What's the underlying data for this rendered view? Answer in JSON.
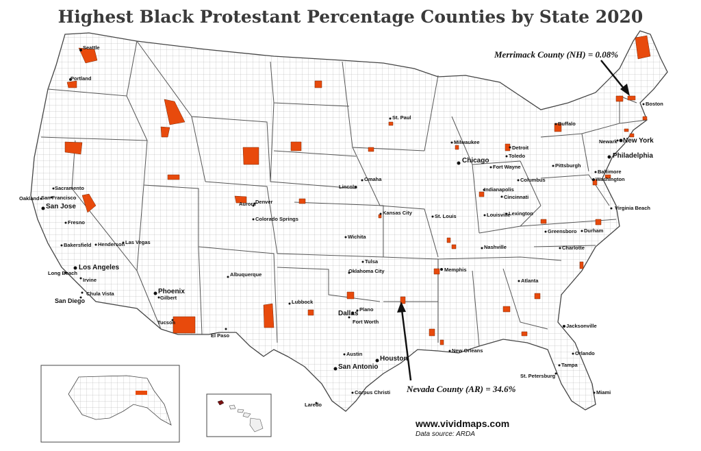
{
  "title": "Highest Black Protestant Percentage Counties by State 2020",
  "colors": {
    "highlight": "#e84a0c",
    "land": "#f0f0f0",
    "border": "#555555",
    "county": "#9a9a9a"
  },
  "annotations": [
    {
      "id": "nh",
      "text": "Merrimack County (NH) = 0.08%"
    },
    {
      "id": "ar",
      "text": "Nevada County (AR) = 34.6%"
    }
  ],
  "footer": {
    "url": "www.vividmaps.com",
    "source": "Data source: ARDA"
  },
  "cities": [
    "Seattle",
    "Portland",
    "Sacramento",
    "Oakland",
    "San Francisco",
    "San Jose",
    "Fresno",
    "Bakersfield",
    "Henderson",
    "Las Vegas",
    "Los Angeles",
    "Long Beach",
    "Irvine",
    "Chula Vista",
    "San Diego",
    "Phoenix",
    "Gilbert",
    "Tucson",
    "El Paso",
    "Albuquerque",
    "Aurora",
    "Denver",
    "Colorado Springs",
    "Lubbock",
    "Dallas",
    "Plano",
    "Fort Worth",
    "Oklahoma City",
    "Tulsa",
    "Wichita",
    "Kansas City",
    "Omaha",
    "Lincoln",
    "St. Paul",
    "Milwaukee",
    "Chicago",
    "Detroit",
    "Toledo",
    "Fort Wayne",
    "Indianapolis",
    "Columbus",
    "Cincinnati",
    "Louisville",
    "Lexington",
    "St. Louis",
    "Nashville",
    "Memphis",
    "Atlanta",
    "Jacksonville",
    "Orlando",
    "Tampa",
    "St. Petersburg",
    "Miami",
    "New Orleans",
    "Austin",
    "Houston",
    "San Antonio",
    "Corpus Christi",
    "Laredo",
    "Greensboro",
    "Durham",
    "Charlotte",
    "Virginia Beach",
    "Washington",
    "Baltimore",
    "Philadelphia",
    "Newark",
    "New York",
    "Pittsburgh",
    "Buffalo",
    "Boston"
  ]
}
